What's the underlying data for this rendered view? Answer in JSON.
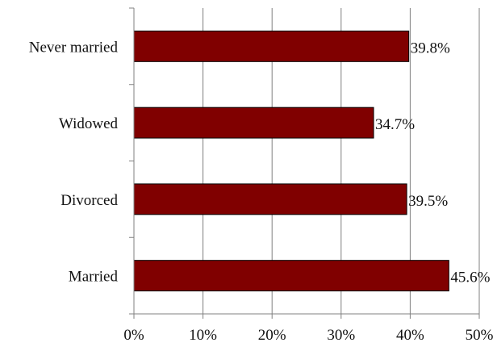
{
  "chart_data": {
    "type": "bar",
    "orientation": "horizontal",
    "categories": [
      "Never married",
      "Widowed",
      "Divorced",
      "Married"
    ],
    "values": [
      39.8,
      34.7,
      39.5,
      45.6
    ],
    "value_labels": [
      "39.8%",
      "34.7%",
      "39.5%",
      "45.6%"
    ],
    "xlim": [
      0,
      50
    ],
    "xticks": [
      0,
      10,
      20,
      30,
      40,
      50
    ],
    "xtick_labels": [
      "0%",
      "10%",
      "20%",
      "30%",
      "40%",
      "50%"
    ],
    "title": "",
    "xlabel": "",
    "ylabel": "",
    "grid": "vertical",
    "legend": "none",
    "bar_color": "#800000",
    "bar_edge_color": "#000000",
    "grid_color": "#808080"
  }
}
